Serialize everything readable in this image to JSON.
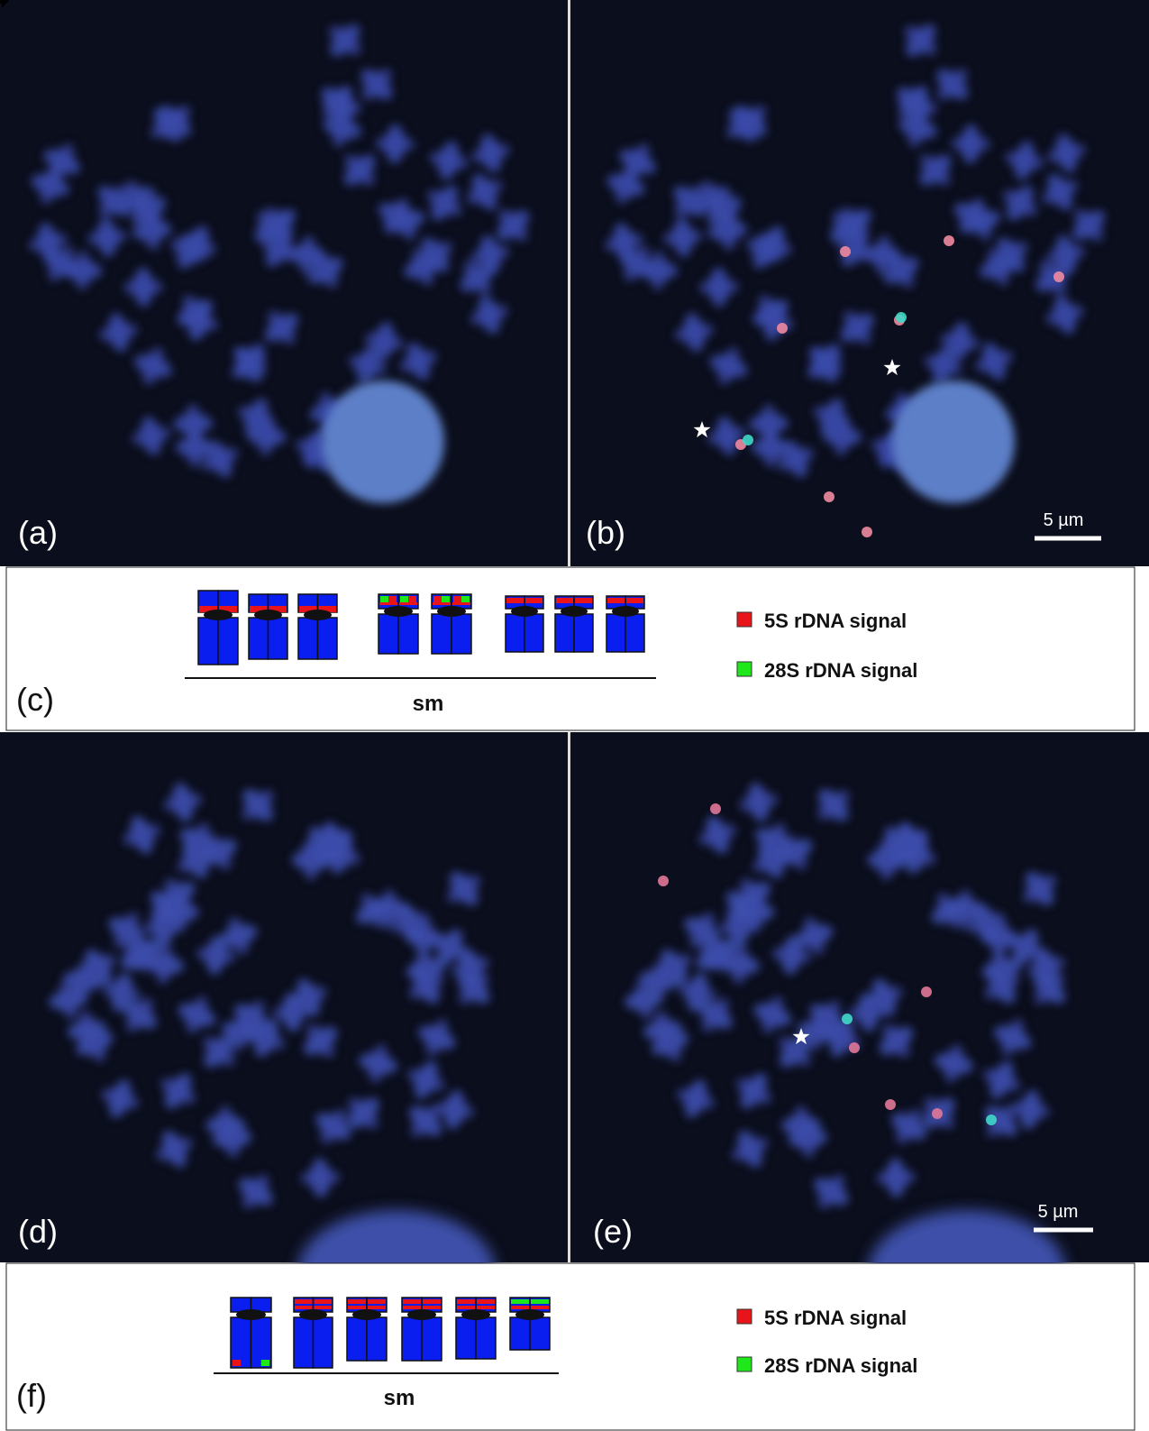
{
  "panels": {
    "a": "(a)",
    "b": "(b)",
    "c": "(c)",
    "d": "(d)",
    "e": "(e)",
    "f": "(f)"
  },
  "scale_bars": {
    "b": "5 µm",
    "e": "5 µm"
  },
  "ideogram_c": {
    "group_label": "sm",
    "legend": [
      "5S rDNA signal",
      "28S rDNA signal"
    ]
  },
  "ideogram_f": {
    "group_label": "sm",
    "legend": [
      "5S rDNA signal",
      "28S rDNA signal"
    ]
  }
}
